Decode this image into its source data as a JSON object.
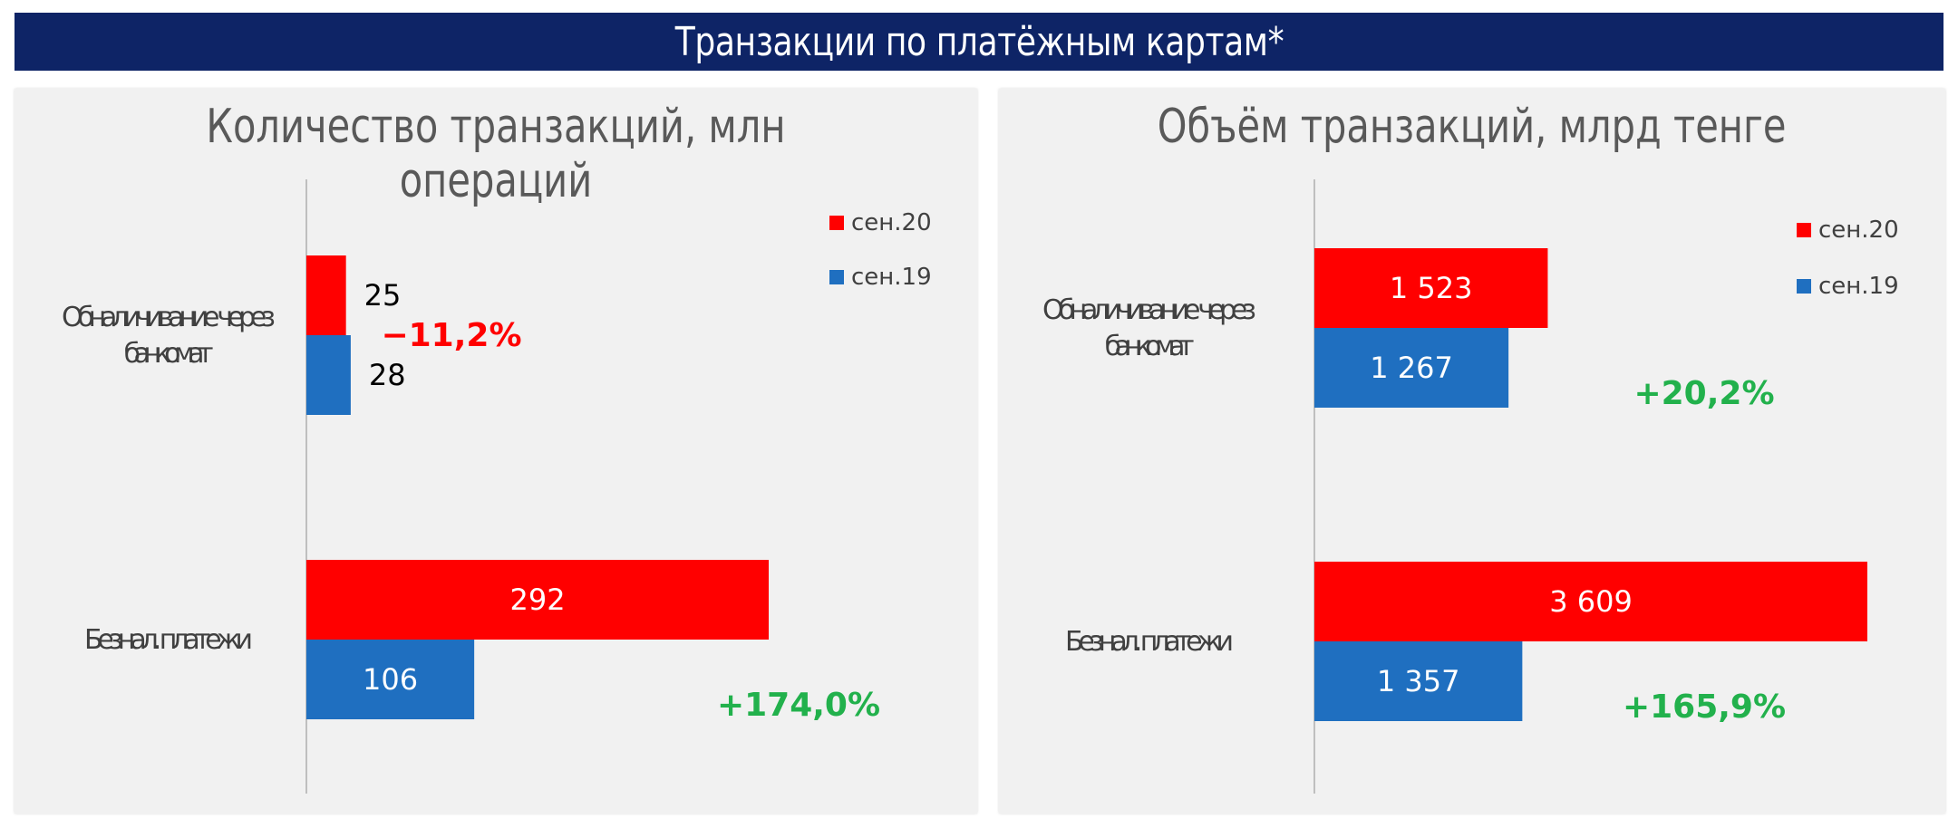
{
  "header": {
    "title": "Транзакции по платёжным картам*"
  },
  "colors": {
    "sen20": "#ff0000",
    "sen19": "#1f6fc0",
    "negative": "#ff0000",
    "positive": "#22b14c",
    "banner": "#0e2466"
  },
  "chart_data": [
    {
      "type": "bar",
      "orientation": "horizontal",
      "title": "Количество транзакций, млн операций",
      "categories": [
        "Обналичивание через банкомат",
        "Безнал. платежи"
      ],
      "category_lines": [
        [
          "Обналичивание через",
          "банкомат"
        ],
        [
          "Безнал. платежи"
        ]
      ],
      "series": [
        {
          "name": "сен.20",
          "values": [
            25,
            292
          ],
          "labels": [
            "25",
            "292"
          ]
        },
        {
          "name": "сен.19",
          "values": [
            28,
            106
          ],
          "labels": [
            "28",
            "106"
          ]
        }
      ],
      "changes": [
        {
          "text": "−11,2%",
          "sign": "negative"
        },
        {
          "text": "+174,0%",
          "sign": "positive"
        }
      ],
      "xlim": [
        0,
        300
      ],
      "legend": "top-right",
      "grid": false
    },
    {
      "type": "bar",
      "orientation": "horizontal",
      "title": "Объём транзакций, млрд тенге",
      "categories": [
        "Обналичивание через банкомат",
        "Безнал. платежи"
      ],
      "category_lines": [
        [
          "Обналичивание через",
          "банкомат"
        ],
        [
          "Безнал. платежи"
        ]
      ],
      "series": [
        {
          "name": "сен.20",
          "values": [
            1523,
            3609
          ],
          "labels": [
            "1 523",
            "3 609"
          ]
        },
        {
          "name": "сен.19",
          "values": [
            1267,
            1357
          ],
          "labels": [
            "1 267",
            "1 357"
          ]
        }
      ],
      "changes": [
        {
          "text": "+20,2%",
          "sign": "positive"
        },
        {
          "text": "+165,9%",
          "sign": "positive"
        }
      ],
      "xlim": [
        0,
        3609
      ],
      "legend": "top-right",
      "grid": false
    }
  ]
}
